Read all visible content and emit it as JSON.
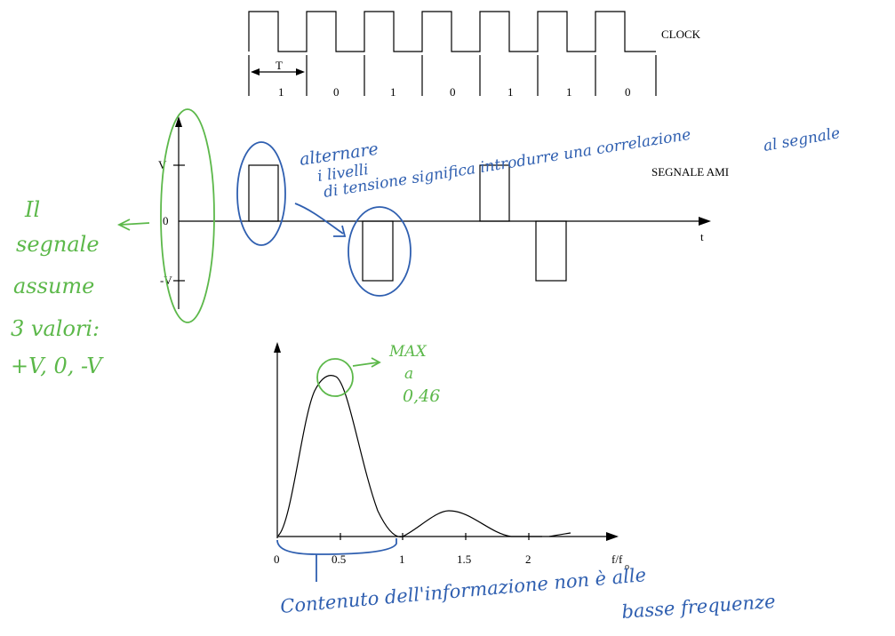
{
  "clock": {
    "label": "CLOCK",
    "period_label": "T",
    "bits": [
      "1",
      "0",
      "1",
      "0",
      "1",
      "1",
      "0"
    ]
  },
  "ami": {
    "label": "SEGNALE AMI",
    "levels": [
      "V",
      "0",
      "-V"
    ],
    "time_label": "t",
    "pulses": [
      1,
      0,
      -1,
      0,
      1,
      -1,
      0
    ]
  },
  "spectrum": {
    "xlabel": "f/f",
    "xlabel_sub": "o",
    "ticks": [
      "0",
      "0.5",
      "1",
      "1.5",
      "2"
    ]
  },
  "annotations": {
    "blue_top_1": "alternare",
    "blue_top_2": "i livelli",
    "blue_top_3": "di tensione significa introdurre una correlazione",
    "blue_top_4": "al segnale",
    "green_left_1": "Il",
    "green_left_2": "segnale",
    "green_left_3": "assume",
    "green_left_4": "3 valori:",
    "green_left_5": "+V, 0, -V",
    "green_max_1": "MAX",
    "green_max_2": "a",
    "green_max_3": "0,46",
    "blue_bottom_1": "Contenuto dell'informazione non è alle",
    "blue_bottom_2": "basse frequenze"
  },
  "colors": {
    "blue_ink": "#2f5fb0",
    "green_ink": "#5cb84a"
  }
}
